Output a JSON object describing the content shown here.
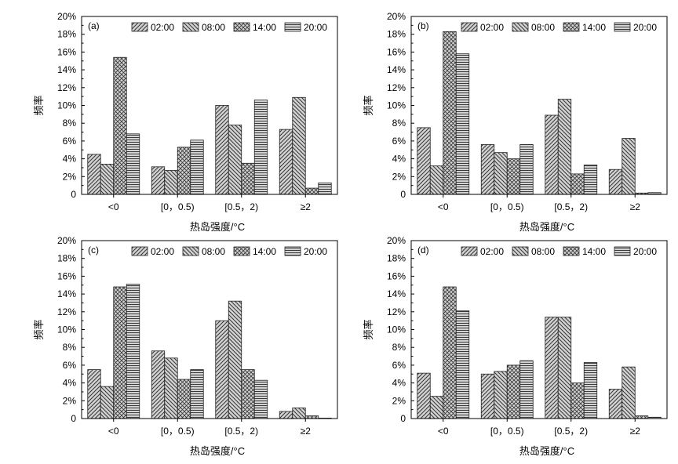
{
  "figure": {
    "xlabel": "热岛强度/°C",
    "ylabel": "频率"
  },
  "chart_data": [
    {
      "type": "bar",
      "panel_tag": "(a)",
      "categories": [
        "<0",
        "[0，0.5)",
        "[0.5，2)",
        "≥2"
      ],
      "series": [
        {
          "name": "02:00",
          "values": [
            4.5,
            3.1,
            10.0,
            7.3
          ]
        },
        {
          "name": "08:00",
          "values": [
            3.4,
            2.7,
            7.8,
            10.9
          ]
        },
        {
          "name": "14:00",
          "values": [
            15.4,
            5.3,
            3.5,
            0.7
          ]
        },
        {
          "name": "20:00",
          "values": [
            6.8,
            6.1,
            10.6,
            1.3
          ]
        }
      ],
      "xlabel": "热岛强度/°C",
      "ylabel": "频率",
      "ylim": [
        0,
        20
      ],
      "yticks": [
        "0",
        "2%",
        "4%",
        "6%",
        "8%",
        "10%",
        "12%",
        "14%",
        "16%",
        "18%",
        "20%"
      ],
      "legend_position": "top-right",
      "grid": false
    },
    {
      "type": "bar",
      "panel_tag": "(b)",
      "categories": [
        "<0",
        "[0，0.5)",
        "[0.5，2)",
        "≥2"
      ],
      "series": [
        {
          "name": "02:00",
          "values": [
            7.5,
            5.6,
            8.9,
            2.8
          ]
        },
        {
          "name": "08:00",
          "values": [
            3.2,
            4.7,
            10.7,
            6.3
          ]
        },
        {
          "name": "14:00",
          "values": [
            18.3,
            4.0,
            2.3,
            0.15
          ]
        },
        {
          "name": "20:00",
          "values": [
            15.8,
            5.6,
            3.3,
            0.2
          ]
        }
      ],
      "xlabel": "热岛强度/°C",
      "ylabel": "频率",
      "ylim": [
        0,
        20
      ],
      "yticks": [
        "0",
        "2%",
        "4%",
        "6%",
        "8%",
        "10%",
        "12%",
        "14%",
        "16%",
        "18%",
        "20%"
      ],
      "legend_position": "top-right",
      "grid": false
    },
    {
      "type": "bar",
      "panel_tag": "(c)",
      "categories": [
        "<0",
        "[0，0.5)",
        "[0.5，2)",
        "≥2"
      ],
      "series": [
        {
          "name": "02:00",
          "values": [
            5.5,
            7.6,
            11.0,
            0.8
          ]
        },
        {
          "name": "08:00",
          "values": [
            3.6,
            6.8,
            13.2,
            1.2
          ]
        },
        {
          "name": "14:00",
          "values": [
            14.8,
            4.4,
            5.5,
            0.3
          ]
        },
        {
          "name": "20:00",
          "values": [
            15.1,
            5.5,
            4.3,
            0.05
          ]
        }
      ],
      "xlabel": "热岛强度/°C",
      "ylabel": "频率",
      "ylim": [
        0,
        20
      ],
      "yticks": [
        "0",
        "2%",
        "4%",
        "6%",
        "8%",
        "10%",
        "12%",
        "14%",
        "16%",
        "18%",
        "20%"
      ],
      "legend_position": "top-right",
      "grid": false
    },
    {
      "type": "bar",
      "panel_tag": "(d)",
      "categories": [
        "<0",
        "[0，0.5)",
        "[0.5，2)",
        "≥2"
      ],
      "series": [
        {
          "name": "02:00",
          "values": [
            5.1,
            5.0,
            11.4,
            3.3
          ]
        },
        {
          "name": "08:00",
          "values": [
            2.5,
            5.3,
            11.4,
            5.8
          ]
        },
        {
          "name": "14:00",
          "values": [
            14.8,
            6.0,
            4.0,
            0.3
          ]
        },
        {
          "name": "20:00",
          "values": [
            12.1,
            6.5,
            6.3,
            0.15
          ]
        }
      ],
      "xlabel": "热岛强度/°C",
      "ylabel": "频率",
      "ylim": [
        0,
        20
      ],
      "yticks": [
        "0",
        "2%",
        "4%",
        "6%",
        "8%",
        "10%",
        "12%",
        "14%",
        "16%",
        "18%",
        "20%"
      ],
      "legend_position": "top-right",
      "grid": false
    }
  ]
}
